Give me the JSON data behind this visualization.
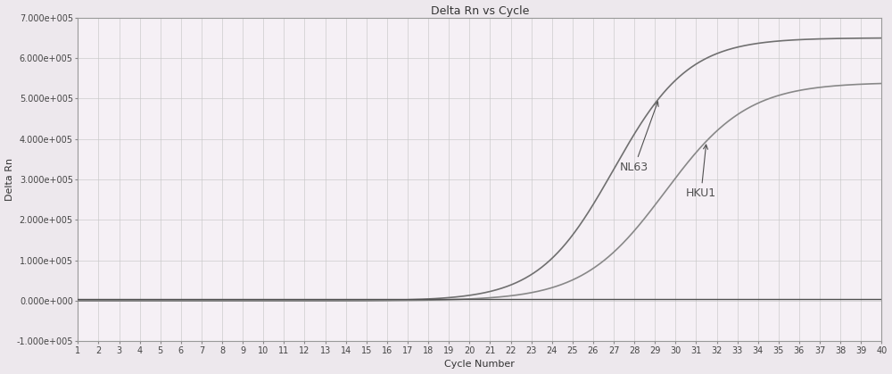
{
  "title": "Delta Rn vs Cycle",
  "xlabel": "Cycle Number",
  "ylabel": "Delta Rn",
  "xlim": [
    1,
    40
  ],
  "ylim": [
    -100000.0,
    700000.0
  ],
  "yticks": [
    -100000.0,
    0.0,
    100000.0,
    200000.0,
    300000.0,
    400000.0,
    500000.0,
    600000.0,
    700000.0
  ],
  "ytick_labels": [
    "-1.000e+005",
    "0.000e+000",
    "1.000e+005",
    "2.000e+005",
    "3.000e+005",
    "4.000e+005",
    "5.000e+005",
    "6.000e+005",
    "7.000e+005"
  ],
  "xticks": [
    1,
    2,
    3,
    4,
    5,
    6,
    7,
    8,
    9,
    10,
    11,
    12,
    13,
    14,
    15,
    16,
    17,
    18,
    19,
    20,
    21,
    22,
    23,
    24,
    25,
    26,
    27,
    28,
    29,
    30,
    31,
    32,
    33,
    34,
    35,
    36,
    37,
    38,
    39,
    40
  ],
  "background_color": "#ede8ed",
  "plot_bg_color": "#f5f0f5",
  "grid_color": "#c8c8c8",
  "line_color_NL63": "#707070",
  "line_color_HKU1": "#888888",
  "baseline_color": "#505050",
  "NL63_label": "NL63",
  "HKU1_label": "HKU1",
  "NL63_midpoint": 27.0,
  "NL63_max": 650000,
  "NL63_k": 0.55,
  "HKU1_midpoint": 29.5,
  "HKU1_max": 540000,
  "HKU1_k": 0.5,
  "title_fontsize": 9,
  "label_fontsize": 8,
  "tick_fontsize": 7,
  "annotation_fontsize": 9
}
